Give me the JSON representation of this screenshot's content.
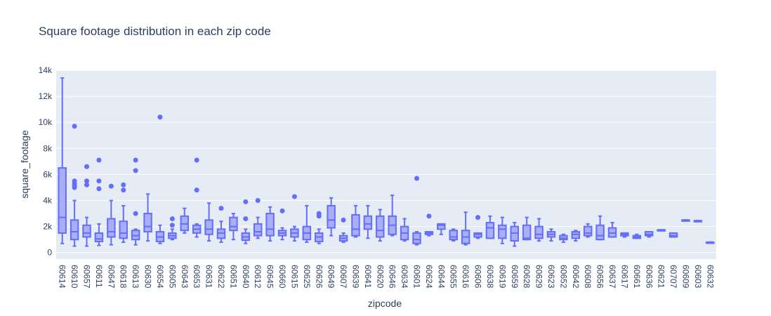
{
  "chart_data": {
    "type": "box",
    "title": "Square footage distribution in each zip code",
    "xlabel": "zipcode",
    "ylabel": "square_footage",
    "ylim": [
      -500,
      14000
    ],
    "yticks": [
      0,
      2000,
      4000,
      6000,
      8000,
      10000,
      12000,
      14000
    ],
    "ytick_labels": [
      "0",
      "2k",
      "4k",
      "6k",
      "8k",
      "10k",
      "12k",
      "14k"
    ],
    "grid": true,
    "colors": {
      "box_line": "#636efa",
      "box_fill": "#a9aef7",
      "plot_bg": "#e5ecf6",
      "grid": "#ffffff",
      "text": "#2a3f5f"
    },
    "categories": [
      "60614",
      "60610",
      "60657",
      "60611",
      "60647",
      "60618",
      "60613",
      "60630",
      "60654",
      "60605",
      "60643",
      "60653",
      "60631",
      "60622",
      "60651",
      "60640",
      "60612",
      "60645",
      "60660",
      "60615",
      "60625",
      "60626",
      "60649",
      "60607",
      "60639",
      "60641",
      "60620",
      "60646",
      "60634",
      "60601",
      "60624",
      "60644",
      "60655",
      "60616",
      "60606",
      "60638",
      "60619",
      "60659",
      "60628",
      "60629",
      "60623",
      "60652",
      "60642",
      "60608",
      "60656",
      "60637",
      "60617",
      "60661",
      "60636",
      "60621",
      "60707",
      "60609",
      "60603",
      "60632"
    ],
    "boxes": [
      {
        "min": 700,
        "q1": 1500,
        "median": 2700,
        "q3": 6500,
        "max": 13400,
        "outliers": []
      },
      {
        "min": 500,
        "q1": 1000,
        "median": 1600,
        "q3": 2500,
        "max": 4000,
        "outliers": [
          5000,
          5100,
          5300,
          5500,
          9700
        ]
      },
      {
        "min": 500,
        "q1": 1200,
        "median": 1500,
        "q3": 2100,
        "max": 2700,
        "outliers": [
          5200,
          5500,
          6600
        ]
      },
      {
        "min": 550,
        "q1": 850,
        "median": 1050,
        "q3": 1500,
        "max": 2200,
        "outliers": [
          4900,
          5500,
          7100
        ]
      },
      {
        "min": 600,
        "q1": 1200,
        "median": 1600,
        "q3": 2600,
        "max": 4000,
        "outliers": [
          5100
        ]
      },
      {
        "min": 800,
        "q1": 1100,
        "median": 1500,
        "q3": 2400,
        "max": 3600,
        "outliers": [
          4800,
          5200
        ]
      },
      {
        "min": 600,
        "q1": 1000,
        "median": 1300,
        "q3": 1700,
        "max": 1800,
        "outliers": [
          3000,
          6300,
          7100
        ]
      },
      {
        "min": 900,
        "q1": 1600,
        "median": 2000,
        "q3": 3000,
        "max": 4500,
        "outliers": []
      },
      {
        "min": 700,
        "q1": 850,
        "median": 1200,
        "q3": 1600,
        "max": 2100,
        "outliers": [
          10400
        ]
      },
      {
        "min": 1000,
        "q1": 1100,
        "median": 1300,
        "q3": 1500,
        "max": 1800,
        "outliers": [
          2100,
          2600
        ]
      },
      {
        "min": 1500,
        "q1": 1700,
        "median": 2200,
        "q3": 2800,
        "max": 3400,
        "outliers": []
      },
      {
        "min": 1200,
        "q1": 1500,
        "median": 1800,
        "q3": 2100,
        "max": 2200,
        "outliers": [
          4800,
          7100
        ]
      },
      {
        "min": 900,
        "q1": 1400,
        "median": 1800,
        "q3": 2500,
        "max": 3800,
        "outliers": []
      },
      {
        "min": 800,
        "q1": 1100,
        "median": 1500,
        "q3": 1800,
        "max": 2400,
        "outliers": [
          3400
        ]
      },
      {
        "min": 1000,
        "q1": 1700,
        "median": 2000,
        "q3": 2700,
        "max": 3000,
        "outliers": []
      },
      {
        "min": 700,
        "q1": 950,
        "median": 1200,
        "q3": 1500,
        "max": 1800,
        "outliers": [
          2600,
          3900
        ]
      },
      {
        "min": 1100,
        "q1": 1300,
        "median": 1600,
        "q3": 2200,
        "max": 2700,
        "outliers": [
          4000
        ]
      },
      {
        "min": 900,
        "q1": 1300,
        "median": 1800,
        "q3": 3000,
        "max": 3500,
        "outliers": []
      },
      {
        "min": 1000,
        "q1": 1300,
        "median": 1500,
        "q3": 1700,
        "max": 1900,
        "outliers": [
          3200
        ]
      },
      {
        "min": 900,
        "q1": 1200,
        "median": 1500,
        "q3": 1800,
        "max": 2000,
        "outliers": [
          4300
        ]
      },
      {
        "min": 800,
        "q1": 1000,
        "median": 1500,
        "q3": 2000,
        "max": 3600,
        "outliers": []
      },
      {
        "min": 700,
        "q1": 850,
        "median": 1200,
        "q3": 1500,
        "max": 1800,
        "outliers": [
          2800,
          3000
        ]
      },
      {
        "min": 1300,
        "q1": 1900,
        "median": 2500,
        "q3": 3600,
        "max": 4200,
        "outliers": []
      },
      {
        "min": 800,
        "q1": 900,
        "median": 1100,
        "q3": 1300,
        "max": 1500,
        "outliers": [
          2500
        ]
      },
      {
        "min": 1200,
        "q1": 1300,
        "median": 1800,
        "q3": 2900,
        "max": 3600,
        "outliers": []
      },
      {
        "min": 1100,
        "q1": 1800,
        "median": 2200,
        "q3": 2800,
        "max": 3600,
        "outliers": []
      },
      {
        "min": 900,
        "q1": 1200,
        "median": 1700,
        "q3": 2800,
        "max": 3300,
        "outliers": []
      },
      {
        "min": 1300,
        "q1": 1400,
        "median": 2100,
        "q3": 2800,
        "max": 4400,
        "outliers": []
      },
      {
        "min": 900,
        "q1": 1000,
        "median": 1500,
        "q3": 2000,
        "max": 2600,
        "outliers": []
      },
      {
        "min": 600,
        "q1": 700,
        "median": 1000,
        "q3": 1500,
        "max": 1600,
        "outliers": [
          5700
        ]
      },
      {
        "min": 1300,
        "q1": 1400,
        "median": 1500,
        "q3": 1600,
        "max": 1600,
        "outliers": [
          2800
        ]
      },
      {
        "min": 1400,
        "q1": 1800,
        "median": 2100,
        "q3": 2200,
        "max": 2200,
        "outliers": []
      },
      {
        "min": 900,
        "q1": 1000,
        "median": 1200,
        "q3": 1700,
        "max": 1800,
        "outliers": []
      },
      {
        "min": 600,
        "q1": 700,
        "median": 1200,
        "q3": 1700,
        "max": 3100,
        "outliers": []
      },
      {
        "min": 1100,
        "q1": 1200,
        "median": 1400,
        "q3": 1500,
        "max": 1500,
        "outliers": [
          2700
        ]
      },
      {
        "min": 1100,
        "q1": 1100,
        "median": 1900,
        "q3": 2300,
        "max": 2800,
        "outliers": []
      },
      {
        "min": 700,
        "q1": 1100,
        "median": 1800,
        "q3": 2100,
        "max": 2700,
        "outliers": []
      },
      {
        "min": 500,
        "q1": 900,
        "median": 1500,
        "q3": 2000,
        "max": 2300,
        "outliers": []
      },
      {
        "min": 1000,
        "q1": 1000,
        "median": 1100,
        "q3": 2100,
        "max": 2700,
        "outliers": []
      },
      {
        "min": 900,
        "q1": 1100,
        "median": 1400,
        "q3": 2000,
        "max": 2600,
        "outliers": []
      },
      {
        "min": 900,
        "q1": 1200,
        "median": 1400,
        "q3": 1600,
        "max": 1800,
        "outliers": []
      },
      {
        "min": 800,
        "q1": 1000,
        "median": 1100,
        "q3": 1300,
        "max": 1400,
        "outliers": []
      },
      {
        "min": 900,
        "q1": 1100,
        "median": 1400,
        "q3": 1600,
        "max": 1700,
        "outliers": []
      },
      {
        "min": 1200,
        "q1": 1300,
        "median": 1500,
        "q3": 2000,
        "max": 2200,
        "outliers": []
      },
      {
        "min": 1000,
        "q1": 1000,
        "median": 1300,
        "q3": 2100,
        "max": 2800,
        "outliers": []
      },
      {
        "min": 1200,
        "q1": 1200,
        "median": 1500,
        "q3": 1900,
        "max": 2300,
        "outliers": []
      },
      {
        "min": 1200,
        "q1": 1300,
        "median": 1400,
        "q3": 1500,
        "max": 1500,
        "outliers": []
      },
      {
        "min": 1100,
        "q1": 1100,
        "median": 1200,
        "q3": 1300,
        "max": 1400,
        "outliers": []
      },
      {
        "min": 1200,
        "q1": 1300,
        "median": 1400,
        "q3": 1600,
        "max": 1600,
        "outliers": []
      },
      {
        "min": 1700,
        "q1": 1700,
        "median": 1700,
        "q3": 1750,
        "max": 1750,
        "outliers": []
      },
      {
        "min": 1200,
        "q1": 1200,
        "median": 1300,
        "q3": 1500,
        "max": 1500,
        "outliers": []
      },
      {
        "min": 2500,
        "q1": 2500,
        "median": 2500,
        "q3": 2500,
        "max": 2500,
        "outliers": []
      },
      {
        "min": 2450,
        "q1": 2450,
        "median": 2450,
        "q3": 2450,
        "max": 2450,
        "outliers": []
      },
      {
        "min": 800,
        "q1": 800,
        "median": 800,
        "q3": 800,
        "max": 800,
        "outliers": []
      }
    ]
  }
}
